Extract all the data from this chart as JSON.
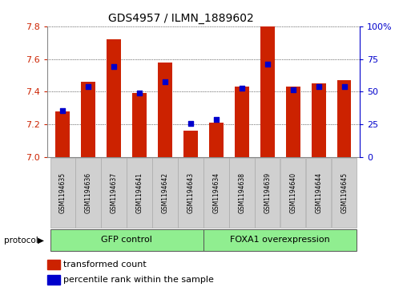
{
  "title": "GDS4957 / ILMN_1889602",
  "samples": [
    "GSM1194635",
    "GSM1194636",
    "GSM1194637",
    "GSM1194641",
    "GSM1194642",
    "GSM1194643",
    "GSM1194634",
    "GSM1194638",
    "GSM1194639",
    "GSM1194640",
    "GSM1194644",
    "GSM1194645"
  ],
  "red_values": [
    7.28,
    7.46,
    7.72,
    7.39,
    7.58,
    7.16,
    7.21,
    7.43,
    7.8,
    7.43,
    7.45,
    7.47
  ],
  "blue_values": [
    7.285,
    7.43,
    7.555,
    7.39,
    7.46,
    7.205,
    7.23,
    7.42,
    7.57,
    7.41,
    7.43,
    7.43
  ],
  "ylim": [
    7.0,
    7.8
  ],
  "yticks": [
    7.0,
    7.2,
    7.4,
    7.6,
    7.8
  ],
  "right_yticks": [
    0,
    25,
    50,
    75,
    100
  ],
  "right_ytick_labels": [
    "0",
    "25",
    "50",
    "75",
    "100%"
  ],
  "gfp_label": "GFP control",
  "foxa1_label": "FOXA1 overexpression",
  "protocol_label": "protocol",
  "bar_color": "#CC2200",
  "dot_color": "#0000CC",
  "legend_red_label": "transformed count",
  "legend_blue_label": "percentile rank within the sample",
  "bar_width": 0.55,
  "dot_size": 18,
  "label_area_color": "#d0d0d0",
  "green_color": "#90EE90"
}
